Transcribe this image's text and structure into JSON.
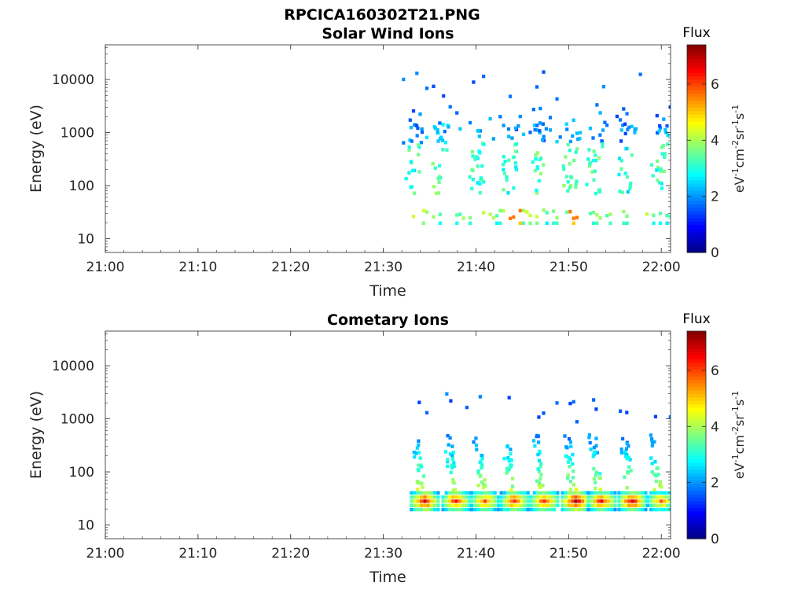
{
  "figure": {
    "title": "RPCICA160302T21.PNG"
  },
  "chart_data": [
    {
      "type": "heatmap",
      "title": "Solar Wind Ions",
      "xlabel": "Time",
      "ylabel": "Energy (eV)",
      "x_range": [
        "21:00",
        "22:01"
      ],
      "x_ticks": [
        "21:00",
        "21:10",
        "21:20",
        "21:30",
        "21:40",
        "21:50",
        "22:00"
      ],
      "y_scale": "log",
      "y_range": [
        5.5,
        45000
      ],
      "y_ticks": [
        10,
        100,
        1000,
        10000
      ],
      "y_tick_labels": [
        "10",
        "100",
        "1000",
        "10000"
      ],
      "data_start": "21:32",
      "data_end": "22:01",
      "colorbar": {
        "title": "Flux",
        "unit_parts": [
          {
            "t": "eV"
          },
          {
            "t": "-1",
            "sup": true
          },
          {
            "t": "cm"
          },
          {
            "t": "-2",
            "sup": true
          },
          {
            "t": "sr"
          },
          {
            "t": "-1",
            "sup": true
          },
          {
            "t": "s"
          },
          {
            "t": "-1",
            "sup": true
          }
        ],
        "range": [
          0,
          7.4
        ],
        "ticks": [
          0,
          2,
          4,
          6
        ],
        "tick_labels": [
          "0",
          "2",
          "4",
          "6"
        ],
        "colormap": "jet"
      },
      "bursts": [
        {
          "t": "21:33.0",
          "peak_energy": 250,
          "flux": 3.1
        },
        {
          "t": "21:35.8",
          "peak_energy": 220,
          "flux": 3.4
        },
        {
          "t": "21:40.0",
          "peak_energy": 200,
          "flux": 3.2
        },
        {
          "t": "21:43.5",
          "peak_energy": 190,
          "flux": 3.1
        },
        {
          "t": "21:46.6",
          "peak_energy": 210,
          "flux": 3.3
        },
        {
          "t": "21:50.0",
          "peak_energy": 200,
          "flux": 3.4
        },
        {
          "t": "21:52.6",
          "peak_energy": 230,
          "flux": 3.2
        },
        {
          "t": "21:56.0",
          "peak_energy": 200,
          "flux": 3.0
        },
        {
          "t": "21:59.5",
          "peak_energy": 220,
          "flux": 3.2
        }
      ],
      "low_band": {
        "energy": 28,
        "flux": 3.8,
        "peak_flux": 5.6,
        "peak_at": [
          "21:44.0",
          "21:50.4"
        ]
      }
    },
    {
      "type": "heatmap",
      "title": "Cometary Ions",
      "xlabel": "Time",
      "ylabel": "Energy (eV)",
      "x_range": [
        "21:00",
        "22:01"
      ],
      "x_ticks": [
        "21:00",
        "21:10",
        "21:20",
        "21:30",
        "21:40",
        "21:50",
        "22:00"
      ],
      "y_scale": "log",
      "y_range": [
        5.5,
        45000
      ],
      "y_ticks": [
        10,
        100,
        1000,
        10000
      ],
      "y_tick_labels": [
        "10",
        "100",
        "1000",
        "10000"
      ],
      "data_start": "21:32",
      "data_end": "22:01",
      "colorbar": {
        "title": "Flux",
        "unit_parts": [
          {
            "t": "eV"
          },
          {
            "t": "-1",
            "sup": true
          },
          {
            "t": "cm"
          },
          {
            "t": "-2",
            "sup": true
          },
          {
            "t": "sr"
          },
          {
            "t": "-1",
            "sup": true
          },
          {
            "t": "s"
          },
          {
            "t": "-1",
            "sup": true
          }
        ],
        "range": [
          0,
          7.4
        ],
        "ticks": [
          0,
          2,
          4,
          6
        ],
        "tick_labels": [
          "0",
          "2",
          "4",
          "6"
        ],
        "colormap": "jet"
      },
      "bursts": [
        {
          "t": "21:34.3",
          "peak_energy": 28,
          "flux": 6.8
        },
        {
          "t": "21:37.7",
          "peak_energy": 28,
          "flux": 6.4
        },
        {
          "t": "21:40.8",
          "peak_energy": 28,
          "flux": 6.0
        },
        {
          "t": "21:44.0",
          "peak_energy": 28,
          "flux": 6.4
        },
        {
          "t": "21:47.2",
          "peak_energy": 28,
          "flux": 6.3
        },
        {
          "t": "21:50.6",
          "peak_energy": 28,
          "flux": 7.2
        },
        {
          "t": "21:53.4",
          "peak_energy": 28,
          "flux": 6.5
        },
        {
          "t": "21:56.7",
          "peak_energy": 28,
          "flux": 6.8
        },
        {
          "t": "21:59.8",
          "peak_energy": 28,
          "flux": 5.6
        }
      ]
    }
  ]
}
